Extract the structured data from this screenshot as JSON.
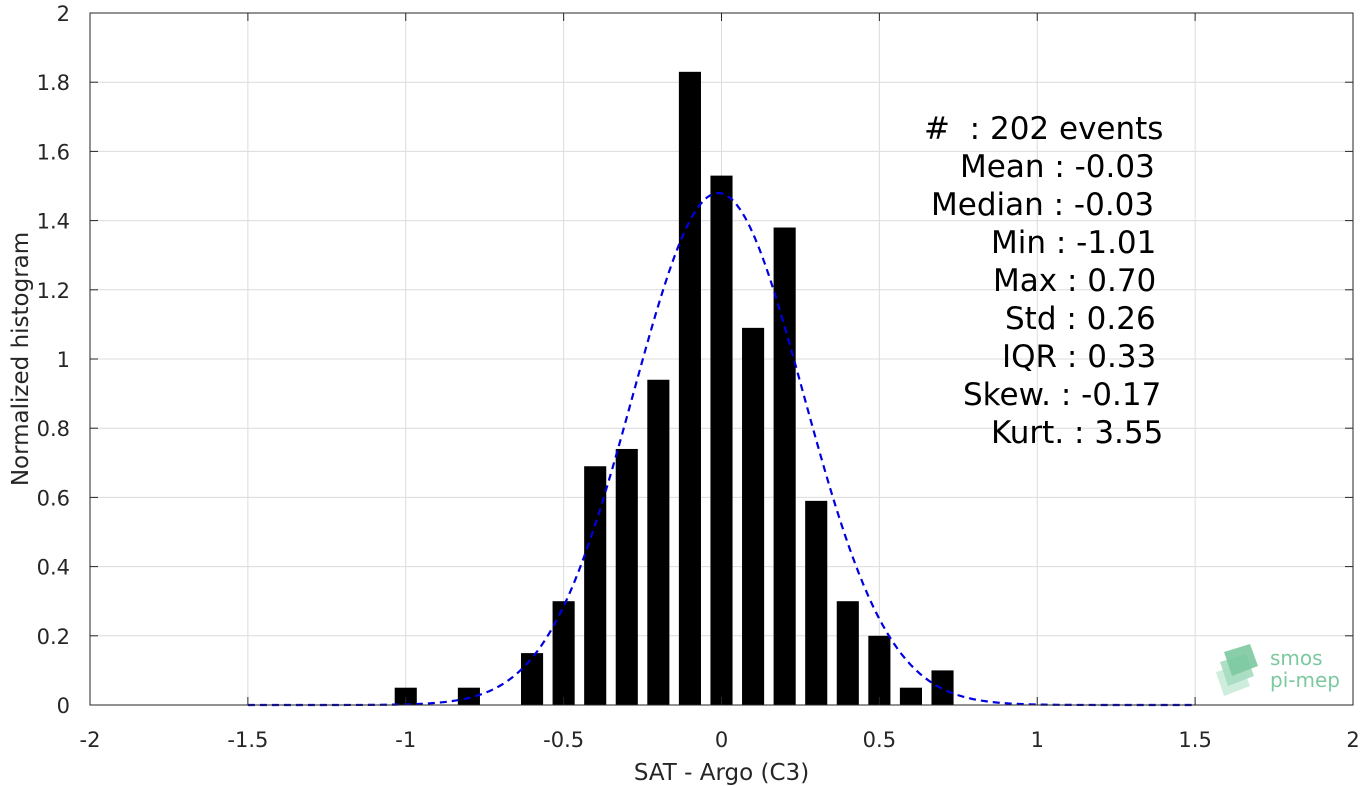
{
  "chart_data": {
    "type": "bar",
    "xlabel": "SAT - Argo (C3)",
    "ylabel": "Normalized histogram",
    "xlim": [
      -2,
      2
    ],
    "ylim": [
      0,
      2
    ],
    "xticks": [
      -2,
      -1.5,
      -1,
      -0.5,
      0,
      0.5,
      1,
      1.5,
      2
    ],
    "xtick_labels": [
      "-2",
      "-1.5",
      "-1",
      "-0.5",
      "0",
      "0.5",
      "1",
      "1.5",
      "2"
    ],
    "yticks": [
      0,
      0.2,
      0.4,
      0.6,
      0.8,
      1,
      1.2,
      1.4,
      1.6,
      1.8,
      2
    ],
    "ytick_labels": [
      "0",
      "0.2",
      "0.4",
      "0.6",
      "0.8",
      "1",
      "1.2",
      "1.4",
      "1.6",
      "1.8",
      "2"
    ],
    "grid": true,
    "bar_width": 0.07,
    "bar_color": "#000000",
    "bars": [
      {
        "x": -1.0,
        "y": 0.05
      },
      {
        "x": -0.8,
        "y": 0.05
      },
      {
        "x": -0.6,
        "y": 0.15
      },
      {
        "x": -0.5,
        "y": 0.3
      },
      {
        "x": -0.4,
        "y": 0.69
      },
      {
        "x": -0.3,
        "y": 0.74
      },
      {
        "x": -0.2,
        "y": 0.94
      },
      {
        "x": -0.1,
        "y": 1.83
      },
      {
        "x": 0.0,
        "y": 1.53
      },
      {
        "x": 0.1,
        "y": 1.09
      },
      {
        "x": 0.2,
        "y": 1.38
      },
      {
        "x": 0.3,
        "y": 0.59
      },
      {
        "x": 0.4,
        "y": 0.3
      },
      {
        "x": 0.5,
        "y": 0.2
      },
      {
        "x": 0.6,
        "y": 0.05
      },
      {
        "x": 0.7,
        "y": 0.1
      }
    ],
    "fit_curve": {
      "style": "dashed",
      "color": "#0000e0",
      "xrange": [
        -1.5,
        1.5
      ],
      "mean": -0.01,
      "std": 0.27,
      "peak": 1.48
    }
  },
  "stats": {
    "count": "#  : 202 events",
    "mean": "Mean : -0.03",
    "median": "Median : -0.03",
    "min": "Min : -1.01",
    "max": "Max : 0.70",
    "std": "Std : 0.26",
    "iqr": "IQR : 0.33",
    "skew": "Skew. : -0.17",
    "kurt": "Kurt. : 3.55"
  },
  "logo": {
    "line1": "smos",
    "line2": "pi-mep",
    "color": "#7cc9a0"
  }
}
